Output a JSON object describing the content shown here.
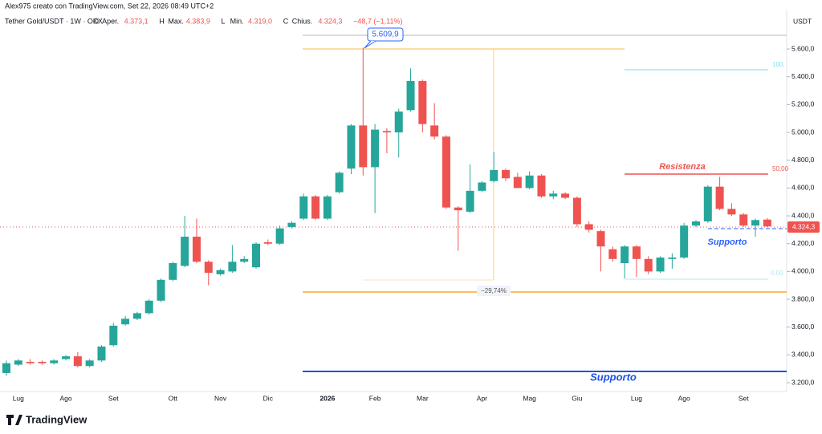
{
  "header": "Alex975 creato con TradingView.com, Set 22, 2026 08:49 UTC+2",
  "legend": {
    "symbol": "Tether Gold/USDT · 1W · OKX",
    "items": [
      {
        "key": "O",
        "name": "Aper.",
        "value": "4.373,1"
      },
      {
        "key": "H",
        "name": "Max.",
        "value": "4.383,9"
      },
      {
        "key": "L",
        "name": "Min.",
        "value": "4.319,0"
      },
      {
        "key": "C",
        "name": "Chius.",
        "value": "4.324,3"
      }
    ],
    "change": "−48,7 (−1,11%)"
  },
  "chart_data": {
    "type": "candlestick",
    "unit": "USDT",
    "categories": [
      null,
      "Lug",
      null,
      null,
      null,
      "Ago",
      null,
      null,
      null,
      "Set",
      null,
      null,
      null,
      null,
      "Ott",
      null,
      null,
      null,
      "Nov",
      null,
      null,
      null,
      "Dic",
      null,
      null,
      null,
      null,
      "2026",
      null,
      null,
      null,
      "Feb",
      null,
      null,
      null,
      "Mar",
      null,
      null,
      null,
      null,
      "Apr",
      null,
      null,
      null,
      "Mag",
      null,
      null,
      null,
      "Giu",
      null,
      null,
      null,
      null,
      "Lug",
      null,
      null,
      null,
      "Ago",
      null,
      null,
      null,
      null,
      "Set",
      null,
      null
    ],
    "open": [
      3270,
      3330,
      3350,
      3350,
      3340,
      3370,
      3390,
      3320,
      3360,
      3470,
      3620,
      3660,
      3700,
      3790,
      3940,
      4040,
      4250,
      4070,
      3980,
      4000,
      4070,
      4030,
      4210,
      4200,
      4320,
      4380,
      4540,
      4380,
      4570,
      4740,
      5050,
      4750,
      5010,
      5000,
      5160,
      5370,
      5050,
      4970,
      4460,
      4430,
      4580,
      4650,
      4730,
      4680,
      4600,
      4690,
      4540,
      4560,
      4530,
      4340,
      4290,
      4160,
      4060,
      4180,
      4090,
      4000,
      4090,
      4100,
      4330,
      4360,
      4610,
      4450,
      4410,
      4330,
      4373.1
    ],
    "high": [
      3360,
      3370,
      3370,
      3360,
      3370,
      3400,
      3420,
      3370,
      3470,
      3630,
      3680,
      3710,
      3800,
      3950,
      4070,
      4400,
      4380,
      4080,
      4020,
      4190,
      4110,
      4210,
      4230,
      4330,
      4360,
      4560,
      4550,
      4550,
      4720,
      5060,
      5610,
      5060,
      5030,
      5170,
      5460,
      5380,
      5210,
      4980,
      4470,
      4770,
      4650,
      4860,
      4740,
      4710,
      4720,
      4700,
      4580,
      4570,
      4540,
      4360,
      4300,
      4180,
      4190,
      4190,
      4110,
      4110,
      4130,
      4350,
      4370,
      4620,
      4680,
      4490,
      4420,
      4380,
      4383.9
    ],
    "low": [
      3250,
      3320,
      3330,
      3330,
      3330,
      3360,
      3310,
      3310,
      3350,
      3460,
      3610,
      3650,
      3690,
      3780,
      3930,
      4030,
      4060,
      3900,
      3970,
      3990,
      4060,
      4020,
      4190,
      4190,
      4310,
      4370,
      4370,
      4370,
      4560,
      4700,
      4690,
      4420,
      4850,
      4820,
      5150,
      5000,
      4950,
      4450,
      4150,
      4420,
      4570,
      4640,
      4650,
      4600,
      4590,
      4530,
      4520,
      4520,
      4320,
      4280,
      4000,
      4070,
      3950,
      3960,
      3980,
      3990,
      4020,
      4090,
      4320,
      4350,
      4440,
      4400,
      4320,
      4250,
      4319.0
    ],
    "close": [
      3340,
      3360,
      3340,
      3340,
      3360,
      3390,
      3320,
      3360,
      3460,
      3610,
      3660,
      3700,
      3790,
      3940,
      4060,
      4250,
      4070,
      3990,
      4010,
      4070,
      4090,
      4200,
      4200,
      4310,
      4350,
      4540,
      4380,
      4540,
      4710,
      5050,
      4750,
      5020,
      5000,
      5150,
      5370,
      5060,
      4970,
      4460,
      4440,
      4580,
      4640,
      4730,
      4670,
      4600,
      4690,
      4540,
      4560,
      4530,
      4340,
      4300,
      4180,
      4090,
      4180,
      4090,
      4000,
      4100,
      4100,
      4330,
      4360,
      4610,
      4450,
      4410,
      4330,
      4370,
      4324.3
    ],
    "up_color": "#26a69a",
    "down_color": "#ef5350",
    "ylim": [
      3137,
      5883
    ],
    "yticks": [
      {
        "value": 3200,
        "label": "3.200,0"
      },
      {
        "value": 3400,
        "label": "3.400,0"
      },
      {
        "value": 3600,
        "label": "3.600,0"
      },
      {
        "value": 3800,
        "label": "3.800,0"
      },
      {
        "value": 4000,
        "label": "4.000,0"
      },
      {
        "value": 4200,
        "label": "4.200,0"
      },
      {
        "value": 4400,
        "label": "4.400,0"
      },
      {
        "value": 4600,
        "label": "4.600,0"
      },
      {
        "value": 4800,
        "label": "4.800,0"
      },
      {
        "value": 5000,
        "label": "5.000,0"
      },
      {
        "value": 5200,
        "label": "5.200,0"
      },
      {
        "value": 5400,
        "label": "5.400,0"
      },
      {
        "value": 5600,
        "label": "5.600,0"
      }
    ],
    "last_price_label": "4.324,3",
    "annotations": {
      "high": "5.609,9",
      "measure": "−29,74%",
      "resistance": "Resistenza",
      "support_near": "Supporto",
      "support_far": "Supporto",
      "fib_top": "100,",
      "fib_mid": "50,00",
      "fib_low": "0,00"
    }
  },
  "footer": "TradingView"
}
